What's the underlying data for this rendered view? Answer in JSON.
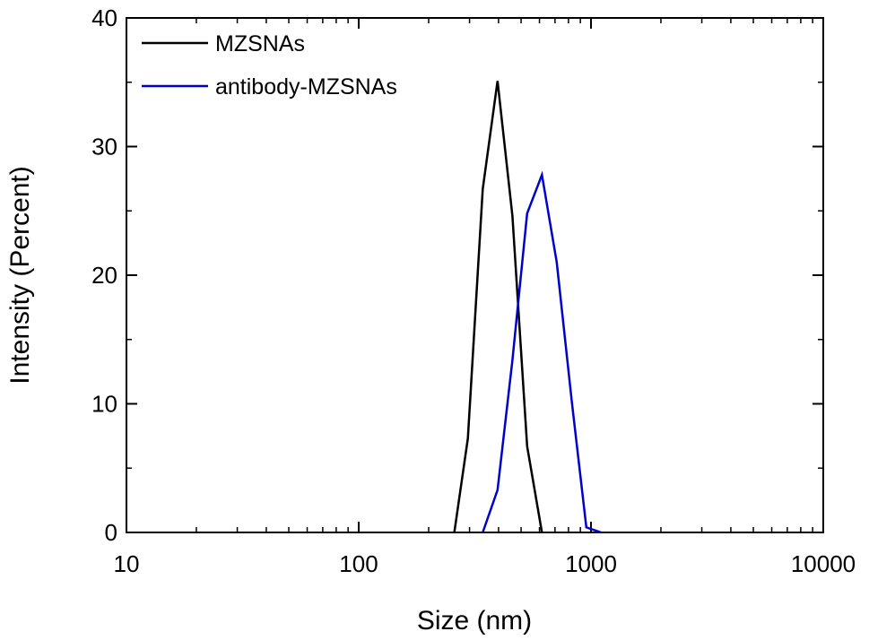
{
  "chart_data": {
    "type": "line",
    "xlabel": "Size (nm)",
    "ylabel": "Intensity (Percent)",
    "xscale": "log",
    "xlim": [
      10,
      10000
    ],
    "ylim": [
      0,
      40
    ],
    "xticks": [
      10,
      100,
      1000,
      10000
    ],
    "xtick_labels": [
      "10",
      "100",
      "1000",
      "10000"
    ],
    "yticks": [
      0,
      10,
      20,
      30,
      40
    ],
    "ytick_labels": [
      "0",
      "10",
      "20",
      "30",
      "40"
    ],
    "grid": false,
    "legend_position": "top-left",
    "series": [
      {
        "name": "MZSNAs",
        "color": "#000000",
        "x": [
          258,
          295,
          342,
          396,
          459,
          531,
          615
        ],
        "y": [
          0,
          7.3,
          26.7,
          35.1,
          24.6,
          6.7,
          0
        ]
      },
      {
        "name": "antibody-MZSNAs",
        "color": "#0000cc",
        "x": [
          342,
          396,
          459,
          531,
          615,
          712,
          825,
          955,
          1106
        ],
        "y": [
          0,
          3.3,
          13.4,
          24.8,
          27.8,
          21.0,
          10.3,
          0.4,
          0
        ]
      }
    ]
  }
}
